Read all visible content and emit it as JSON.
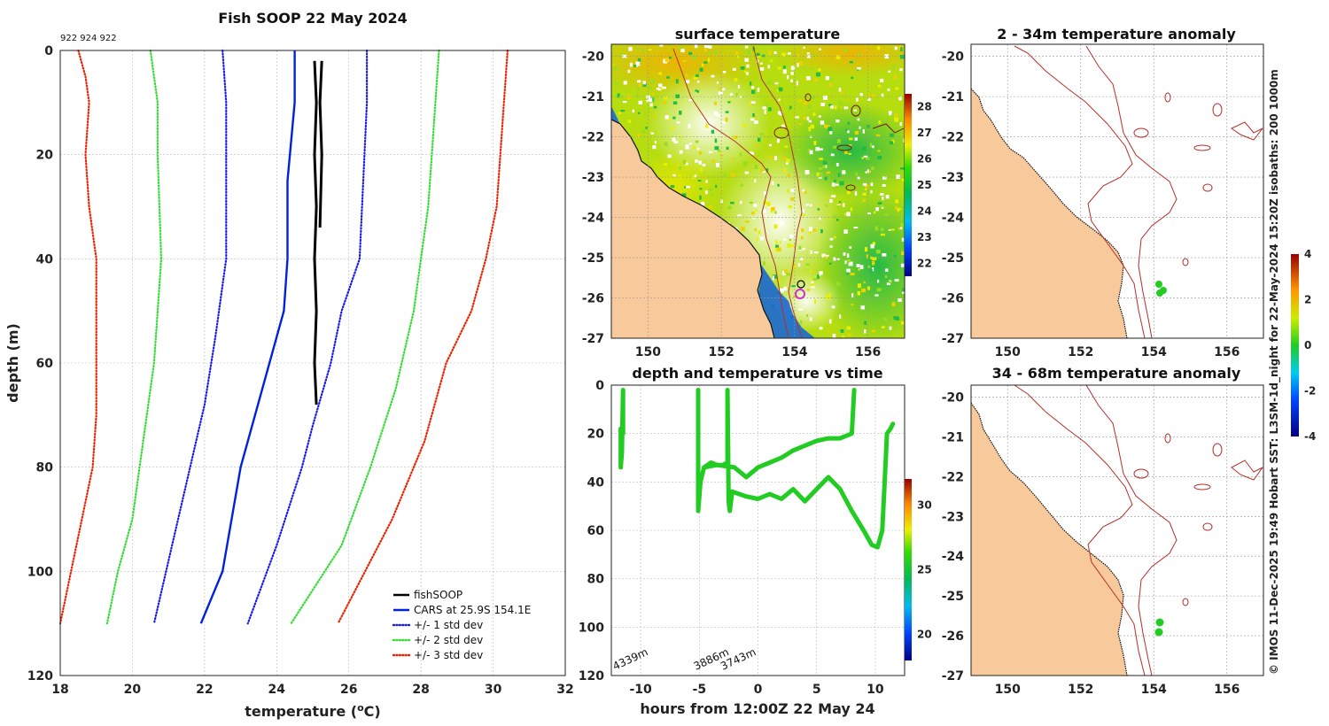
{
  "colors": {
    "fishsoop": "#000000",
    "cars": "#0022dd",
    "std1": "#1a1aee",
    "std2": "#33dd33",
    "std3": "#ee2200",
    "land": "#f8c99a",
    "contour": "#b5302a",
    "track": "#22cc22"
  },
  "chart_data": [
    {
      "id": "profile",
      "type": "line",
      "title": "Fish SOOP 22 May 2024",
      "ids_text": "922 924 922",
      "xlabel": "temperature (°C)",
      "xlabel_main": "temperature (",
      "xlabel_sup": "o",
      "xlabel_end": "C)",
      "ylabel": "depth (m)",
      "xlim": [
        18,
        32
      ],
      "ylim": [
        0,
        120
      ],
      "xticks": [
        "18",
        "20",
        "22",
        "24",
        "26",
        "28",
        "30",
        "32"
      ],
      "yticks": [
        "0",
        "20",
        "40",
        "60",
        "80",
        "100",
        "120"
      ],
      "legend": [
        "fishSOOP",
        "CARS at 25.9S 154.1E",
        "+/- 1 std dev",
        "+/- 2 std dev",
        "+/- 3 std dev"
      ],
      "series": [
        {
          "name": "CARS at 25.9S 154.1E",
          "style": "solid",
          "color": "#0022dd",
          "points": [
            [
              24.5,
              0
            ],
            [
              24.5,
              10
            ],
            [
              24.3,
              25
            ],
            [
              24.3,
              40
            ],
            [
              24.2,
              50
            ],
            [
              23.6,
              65
            ],
            [
              23.0,
              80
            ],
            [
              22.5,
              100
            ],
            [
              21.9,
              110
            ]
          ]
        },
        {
          "name": "+1 std",
          "style": "dot",
          "color": "#1a1aee",
          "points": [
            [
              26.5,
              0
            ],
            [
              26.5,
              10
            ],
            [
              26.4,
              25
            ],
            [
              26.3,
              40
            ],
            [
              25.8,
              50
            ],
            [
              25.5,
              60
            ],
            [
              25.0,
              72
            ],
            [
              24.7,
              80
            ],
            [
              24.0,
              95
            ],
            [
              23.2,
              110
            ]
          ]
        },
        {
          "name": "-1 std",
          "style": "dot",
          "color": "#1a1aee",
          "points": [
            [
              22.5,
              0
            ],
            [
              22.6,
              10
            ],
            [
              22.6,
              25
            ],
            [
              22.6,
              40
            ],
            [
              22.3,
              55
            ],
            [
              22.0,
              68
            ],
            [
              21.6,
              80
            ],
            [
              21.1,
              95
            ],
            [
              20.6,
              110
            ]
          ]
        },
        {
          "name": "+2 std",
          "style": "dot",
          "color": "#33dd33",
          "points": [
            [
              28.5,
              0
            ],
            [
              28.4,
              10
            ],
            [
              28.3,
              20
            ],
            [
              28.2,
              30
            ],
            [
              28.0,
              40
            ],
            [
              27.8,
              50
            ],
            [
              27.3,
              65
            ],
            [
              26.6,
              80
            ],
            [
              25.8,
              95
            ],
            [
              24.4,
              110
            ]
          ]
        },
        {
          "name": "-2 std",
          "style": "dot",
          "color": "#33dd33",
          "points": [
            [
              20.5,
              0
            ],
            [
              20.7,
              10
            ],
            [
              20.7,
              20
            ],
            [
              20.8,
              40
            ],
            [
              20.6,
              60
            ],
            [
              20.3,
              75
            ],
            [
              20.0,
              90
            ],
            [
              19.6,
              100
            ],
            [
              19.3,
              110
            ]
          ]
        },
        {
          "name": "+3 std",
          "style": "dot",
          "color": "#ee2200",
          "points": [
            [
              30.4,
              0
            ],
            [
              30.3,
              10
            ],
            [
              30.2,
              20
            ],
            [
              30.1,
              30
            ],
            [
              29.8,
              40
            ],
            [
              29.4,
              50
            ],
            [
              28.7,
              60
            ],
            [
              28.1,
              75
            ],
            [
              27.2,
              90
            ],
            [
              25.7,
              110
            ]
          ]
        },
        {
          "name": "-3 std",
          "style": "dot",
          "color": "#ee2200",
          "points": [
            [
              18.5,
              0
            ],
            [
              18.7,
              5
            ],
            [
              18.8,
              10
            ],
            [
              18.7,
              20
            ],
            [
              18.8,
              30
            ],
            [
              19.0,
              40
            ],
            [
              19.0,
              60
            ],
            [
              19.0,
              70
            ],
            [
              18.9,
              80
            ],
            [
              18.6,
              90
            ],
            [
              18.3,
              100
            ],
            [
              18.0,
              110
            ]
          ]
        },
        {
          "name": "fishSOOP",
          "style": "solid",
          "color": "#000000",
          "points": [
            [
              25.05,
              2
            ],
            [
              25.1,
              10
            ],
            [
              25.05,
              20
            ],
            [
              25.1,
              30
            ],
            [
              25.05,
              40
            ],
            [
              25.1,
              50
            ],
            [
              25.05,
              60
            ],
            [
              25.1,
              68
            ]
          ]
        },
        {
          "name": "fishSOOP-b",
          "style": "solid",
          "color": "#000000",
          "points": [
            [
              25.25,
              2
            ],
            [
              25.2,
              10
            ],
            [
              25.25,
              20
            ],
            [
              25.2,
              34
            ]
          ]
        }
      ]
    },
    {
      "id": "sst",
      "type": "heatmap",
      "title": "surface temperature",
      "xlim": [
        149,
        157
      ],
      "ylim": [
        -27,
        -19.7
      ],
      "xticks": [
        "150",
        "152",
        "154",
        "156"
      ],
      "yticks": [
        "-20",
        "-21",
        "-22",
        "-23",
        "-24",
        "-25",
        "-26",
        "-27"
      ],
      "colorbar": {
        "min": 21.5,
        "max": 28.5,
        "ticks": [
          "28",
          "27",
          "26",
          "25",
          "24",
          "23",
          "22"
        ]
      },
      "markers": [
        {
          "lon": 154.2,
          "lat": -25.6
        },
        {
          "lon": 154.15,
          "lat": -25.85
        }
      ]
    },
    {
      "id": "anom1",
      "type": "heatmap",
      "title": "2 - 34m temperature anomaly",
      "xlim": [
        149,
        157
      ],
      "ylim": [
        -27,
        -19.7
      ],
      "xticks": [
        "150",
        "152",
        "154",
        "156"
      ],
      "yticks": [
        "-20",
        "-21",
        "-22",
        "-23",
        "-24",
        "-25",
        "-26",
        "-27"
      ],
      "markers": [
        {
          "lon": 154.2,
          "lat": -25.6
        },
        {
          "lon": 154.2,
          "lat": -25.85
        }
      ],
      "colorbar": {
        "min": -4,
        "max": 4,
        "ticks": [
          "4",
          "2",
          "0",
          "-2",
          "-4"
        ]
      }
    },
    {
      "id": "depthtime",
      "type": "line",
      "title": "depth and temperature vs time",
      "xlabel": "hours from 12:00Z 22 May 24",
      "xlim": [
        -12.5,
        12.5
      ],
      "ylim": [
        0,
        120
      ],
      "xticks": [
        "-10",
        "-5",
        "0",
        "5",
        "10"
      ],
      "yticks": [
        "0",
        "20",
        "40",
        "60",
        "80",
        "100",
        "120"
      ],
      "colorbar": {
        "min": 18,
        "max": 32,
        "ticks": [
          "30",
          "25",
          "20"
        ]
      },
      "depth_labels": [
        {
          "text": "4339m",
          "x": -12.2
        },
        {
          "text": "3886m",
          "x": -5.3
        },
        {
          "text": "3743m",
          "x": -3.0
        }
      ],
      "series": [
        {
          "name": "cast1",
          "points": [
            [
              -11.7,
              18
            ],
            [
              -11.7,
              34
            ],
            [
              -11.6,
              28
            ],
            [
              -11.5,
              2
            ],
            [
              -11.5,
              20
            ]
          ]
        },
        {
          "name": "cast2",
          "points": [
            [
              -5.1,
              2
            ],
            [
              -5.1,
              52
            ],
            [
              -4.9,
              40
            ],
            [
              -4.6,
              34
            ],
            [
              -4.0,
              32
            ],
            [
              -3.5,
              33
            ],
            [
              -3.0,
              33
            ],
            [
              -2.6,
              32
            ],
            [
              -2.6,
              2
            ],
            [
              -2.5,
              48
            ],
            [
              -2.4,
              52
            ],
            [
              -2.2,
              44
            ],
            [
              -1.0,
              46
            ],
            [
              0,
              47
            ],
            [
              1.0,
              45
            ],
            [
              2.0,
              47
            ],
            [
              3.0,
              43
            ],
            [
              4.0,
              48
            ],
            [
              5.0,
              43
            ],
            [
              6.0,
              38
            ],
            [
              7.0,
              43
            ],
            [
              8.0,
              52
            ],
            [
              9.0,
              60
            ],
            [
              9.7,
              66
            ],
            [
              10.2,
              67
            ],
            [
              10.6,
              60
            ],
            [
              10.8,
              40
            ],
            [
              11.0,
              20
            ],
            [
              11.3,
              18
            ],
            [
              11.5,
              16
            ]
          ]
        },
        {
          "name": "cast2-upper",
          "points": [
            [
              -4.6,
              34
            ],
            [
              -3.5,
              33
            ],
            [
              -2.0,
              34
            ],
            [
              -1.0,
              38
            ],
            [
              0,
              34
            ],
            [
              1.0,
              32
            ],
            [
              2.0,
              30
            ],
            [
              3.0,
              27
            ],
            [
              4.0,
              25
            ],
            [
              5.0,
              23
            ],
            [
              6.0,
              22
            ],
            [
              7.0,
              22
            ],
            [
              8.0,
              20
            ],
            [
              8.2,
              2
            ]
          ]
        }
      ]
    },
    {
      "id": "anom2",
      "type": "heatmap",
      "title": "34 - 68m temperature anomaly",
      "xlim": [
        149,
        157
      ],
      "ylim": [
        -27,
        -19.7
      ],
      "xticks": [
        "150",
        "152",
        "154",
        "156"
      ],
      "yticks": [
        "-20",
        "-21",
        "-22",
        "-23",
        "-24",
        "-25",
        "-26",
        "-27"
      ],
      "markers": [
        {
          "lon": 154.2,
          "lat": -25.6
        },
        {
          "lon": 154.15,
          "lat": -25.85
        }
      ]
    }
  ],
  "side_note": "© IMOS 11-Dec-2025 19:49 Hobart SST: L3SM-1d_night for 22-May-2024 15:20Z isobaths: 200  1000m"
}
